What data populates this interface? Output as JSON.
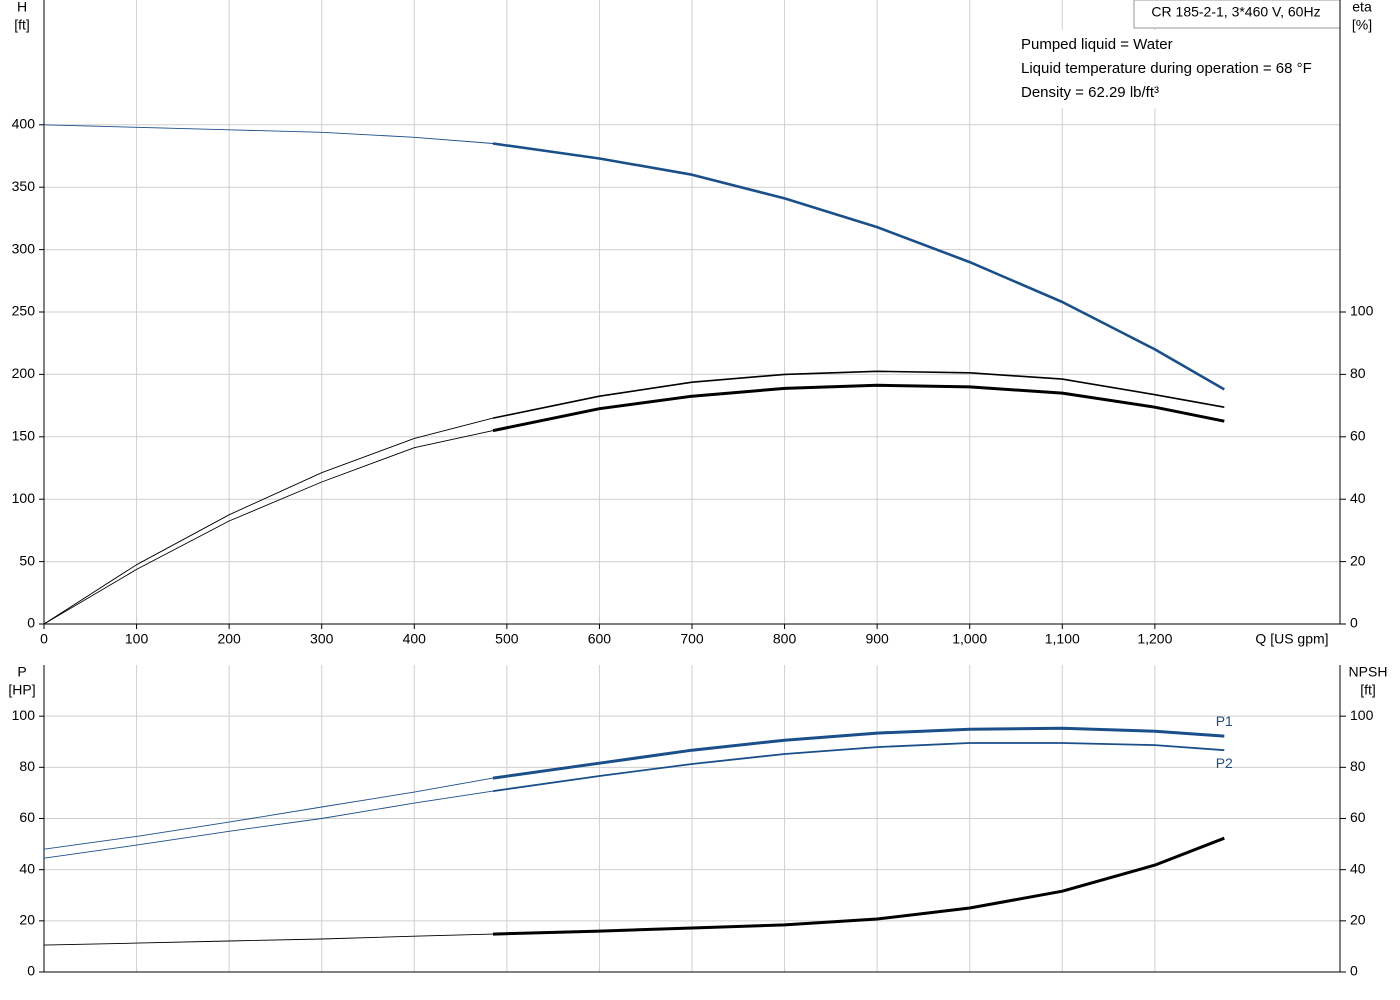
{
  "chart_data": [
    {
      "type": "line",
      "title": "CR 185-2-1, 3*460 V, 60Hz",
      "annotations": [
        "Pumped liquid = Water",
        "Liquid temperature during operation = 68 °F",
        "Density = 62.29 lb/ft³"
      ],
      "y_label": "H",
      "y_unit": "[ft]",
      "y2_label": "eta",
      "y2_unit": "[%]",
      "x_label": "Q [US gpm]",
      "x": [
        0,
        100,
        200,
        300,
        400,
        485,
        600,
        700,
        800,
        900,
        1000,
        1100,
        1200,
        1275
      ],
      "xlim": [
        0,
        1400
      ],
      "xticks": [
        0,
        100,
        200,
        300,
        400,
        500,
        600,
        700,
        800,
        900,
        {
          "value": 1000,
          "label": "1,000"
        },
        {
          "value": 1100,
          "label": "1,100"
        },
        {
          "value": 1200,
          "label": "1,200"
        }
      ],
      "ylim": [
        0,
        500
      ],
      "yticks": [
        0,
        50,
        100,
        150,
        200,
        250,
        300,
        350,
        400
      ],
      "y2lim": [
        0,
        200
      ],
      "y2ticks": [
        0,
        20,
        40,
        60,
        80,
        100
      ],
      "grid": true,
      "duty_range": [
        485,
        1275
      ],
      "series": [
        {
          "color": "#1b4f8a",
          "values": [
            400,
            398,
            396,
            394,
            390,
            385,
            373,
            360,
            341,
            318,
            290,
            258,
            220,
            188
          ]
        },
        {
          "color": "#000000",
          "axis": "y2",
          "values": [
            0,
            19,
            35,
            48.5,
            59.5,
            66,
            73,
            77.5,
            80,
            81,
            80.5,
            78.5,
            73.5,
            69.5
          ]
        },
        {
          "color": "#000000",
          "axis": "y2",
          "values": [
            0,
            17.5,
            33,
            45.5,
            56.5,
            62,
            69,
            73,
            75.5,
            76.5,
            76,
            74,
            69.5,
            65
          ]
        }
      ]
    },
    {
      "type": "line",
      "y_label": "P",
      "y_unit": "[HP]",
      "y2_label": "NPSH",
      "y2_unit": "[ft]",
      "x": [
        0,
        100,
        200,
        300,
        400,
        485,
        600,
        700,
        800,
        900,
        1000,
        1100,
        1200,
        1275
      ],
      "ylim": [
        0,
        120
      ],
      "yticks": [
        0,
        20,
        40,
        60,
        80,
        100
      ],
      "y2lim": [
        0,
        120
      ],
      "y2ticks": [
        0,
        20,
        40,
        60,
        80,
        100
      ],
      "grid": true,
      "series": [
        {
          "name": "P1",
          "color": "#1b4f8a",
          "values": [
            48,
            53,
            58.6,
            64.5,
            70.3,
            75.8,
            81.6,
            86.7,
            90.6,
            93.4,
            94.9,
            95.3,
            94.1,
            92.2
          ]
        },
        {
          "name": "P2",
          "color": "#1b4f8a",
          "values": [
            44.5,
            49.6,
            55,
            60,
            66,
            70.7,
            76.6,
            81.3,
            85.2,
            87.9,
            89.5,
            89.5,
            88.7,
            86.7
          ]
        },
        {
          "color": "#000000",
          "axis": "y2",
          "values": [
            10.5,
            11.3,
            12.1,
            12.9,
            14,
            14.8,
            16,
            17.2,
            18.4,
            20.7,
            25,
            31.6,
            41.8,
            52.3
          ]
        }
      ]
    }
  ]
}
